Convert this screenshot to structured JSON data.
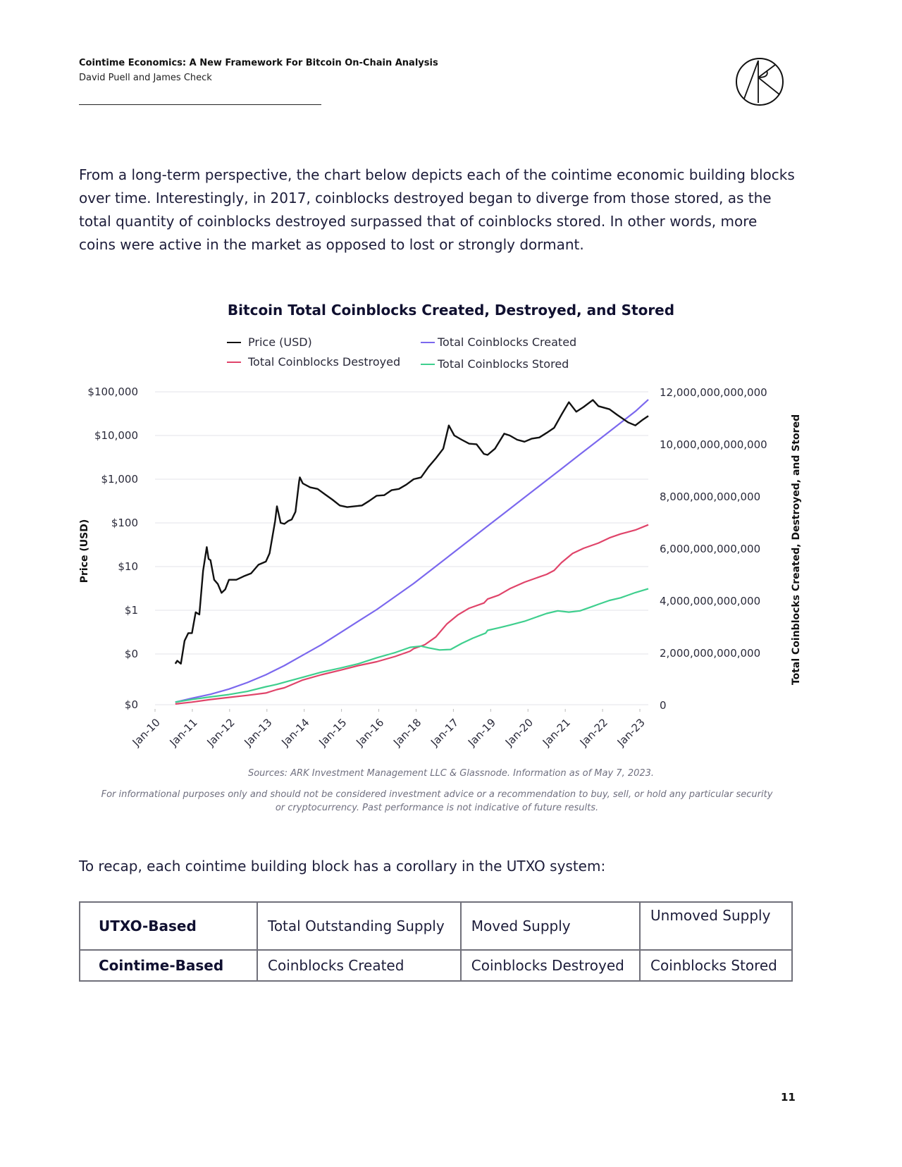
{
  "header": {
    "title": "Cointime Economics: A New Framework For Bitcoin On-Chain Analysis",
    "authors": "David Puell and James Check"
  },
  "intro_paragraph": "From a long-term perspective, the chart below depicts each of the cointime economic building blocks over time. Interestingly, in 2017, coinblocks destroyed began to diverge from those stored, as the total quantity of coinblocks destroyed surpassed that of coinblocks stored. In other words, more coins were active in the market as opposed to lost or strongly dormant.",
  "chart_data": {
    "type": "line",
    "title": "Bitcoin Total Coinblocks Created, Destroyed, and Stored",
    "xlabel": "",
    "ylabel_left": "Price (USD)",
    "ylabel_right": "Total Coinblocks Created, Destroyed, and Stored",
    "legend": [
      {
        "name": "Price (USD)",
        "color": "#111111"
      },
      {
        "name": "Total Coinblocks Created",
        "color": "#7b68ee"
      },
      {
        "name": "Total Coinblocks Destroyed",
        "color": "#e0446a"
      },
      {
        "name": "Total Coinblocks Stored",
        "color": "#3fcf8e"
      }
    ],
    "x_ticks": [
      "Jan-10",
      "Jan-11",
      "Jan-12",
      "Jan-13",
      "Jan-14",
      "Jan-15",
      "Jan-16",
      "Jan-18",
      "Jan-17",
      "Jan-19",
      "Jan-20",
      "Jan-21",
      "Jan-22",
      "Jan-23"
    ],
    "left_ticks": [
      "$100,000",
      "$10,000",
      "$1,000",
      "$100",
      "$10",
      "$1",
      "$0",
      "$0"
    ],
    "right_ticks": [
      "12,000,000,000,000",
      "10,000,000,000,000",
      "8,000,000,000,000",
      "6,000,000,000,000",
      "4,000,000,000,000",
      "2,000,000,000,000",
      "0"
    ],
    "x_range": [
      2010.0,
      2023.35
    ],
    "right_ylim": [
      0,
      12000000000000
    ],
    "left_scale": "log",
    "grid": true,
    "legend_placement": "top",
    "series": [
      {
        "name": "Price (USD)",
        "axis": "left",
        "color": "#111111",
        "x": [
          2010.55,
          2010.6,
          2010.7,
          2010.8,
          2010.9,
          2011.0,
          2011.1,
          2011.2,
          2011.3,
          2011.4,
          2011.45,
          2011.5,
          2011.6,
          2011.7,
          2011.8,
          2011.9,
          2012.0,
          2012.2,
          2012.4,
          2012.6,
          2012.8,
          2013.0,
          2013.1,
          2013.25,
          2013.3,
          2013.4,
          2013.5,
          2013.6,
          2013.7,
          2013.8,
          2013.9,
          2013.92,
          2014.0,
          2014.2,
          2014.4,
          2014.6,
          2014.8,
          2015.0,
          2015.2,
          2015.4,
          2015.6,
          2015.8,
          2016.0,
          2016.2,
          2016.4,
          2016.6,
          2016.8,
          2017.0,
          2017.2,
          2017.4,
          2017.6,
          2017.8,
          2017.95,
          2018.1,
          2018.3,
          2018.5,
          2018.7,
          2018.9,
          2019.0,
          2019.2,
          2019.45,
          2019.6,
          2019.8,
          2020.0,
          2020.2,
          2020.4,
          2020.6,
          2020.8,
          2021.0,
          2021.2,
          2021.4,
          2021.6,
          2021.85,
          2022.0,
          2022.3,
          2022.5,
          2022.8,
          2023.0,
          2023.2,
          2023.35
        ],
        "y": [
          0.06,
          0.07,
          0.06,
          0.2,
          0.3,
          0.3,
          0.9,
          0.8,
          8,
          28,
          15,
          14,
          5,
          4,
          2.5,
          3,
          5,
          5,
          6,
          7,
          11,
          13,
          20,
          110,
          240,
          100,
          95,
          110,
          120,
          180,
          900,
          1100,
          800,
          650,
          600,
          450,
          340,
          250,
          230,
          240,
          250,
          320,
          420,
          430,
          560,
          600,
          750,
          1000,
          1100,
          1900,
          3000,
          5000,
          17000,
          10000,
          8000,
          6500,
          6300,
          3800,
          3600,
          5000,
          11000,
          10000,
          8000,
          7200,
          8500,
          9000,
          11500,
          15000,
          30000,
          58000,
          35000,
          45000,
          65000,
          47000,
          40000,
          30000,
          20000,
          17000,
          23000,
          28000
        ]
      },
      {
        "name": "Total Coinblocks Created",
        "axis": "right",
        "color": "#7b68ee",
        "x": [
          2010.55,
          2011.0,
          2011.5,
          2012.0,
          2012.5,
          2013.0,
          2013.5,
          2014.0,
          2014.5,
          2015.0,
          2015.5,
          2016.0,
          2016.5,
          2017.0,
          2017.5,
          2018.0,
          2018.5,
          2019.0,
          2019.5,
          2020.0,
          2020.5,
          2021.0,
          2021.5,
          2022.0,
          2022.5,
          2023.0,
          2023.35
        ],
        "y": [
          100000000000,
          250000000000,
          400000000000,
          600000000000,
          850000000000,
          1150000000000,
          1500000000000,
          1900000000000,
          2300000000000,
          2750000000000,
          3200000000000,
          3650000000000,
          4150000000000,
          4650000000000,
          5200000000000,
          5750000000000,
          6300000000000,
          6850000000000,
          7400000000000,
          7950000000000,
          8500000000000,
          9050000000000,
          9600000000000,
          10150000000000,
          10700000000000,
          11250000000000,
          11700000000000
        ]
      },
      {
        "name": "Total Coinblocks Destroyed",
        "axis": "right",
        "color": "#e0446a",
        "x": [
          2010.55,
          2011.0,
          2011.5,
          2012.0,
          2012.5,
          2013.0,
          2013.3,
          2013.5,
          2014.0,
          2014.5,
          2015.0,
          2015.5,
          2016.0,
          2016.5,
          2016.9,
          2017.0,
          2017.3,
          2017.6,
          2017.9,
          2018.2,
          2018.5,
          2018.9,
          2019.0,
          2019.3,
          2019.6,
          2020.0,
          2020.3,
          2020.6,
          2020.8,
          2021.0,
          2021.3,
          2021.6,
          2022.0,
          2022.3,
          2022.6,
          2023.0,
          2023.35
        ],
        "y": [
          30000000000,
          100000000000,
          200000000000,
          280000000000,
          360000000000,
          450000000000,
          580000000000,
          650000000000,
          950000000000,
          1150000000000,
          1320000000000,
          1500000000000,
          1650000000000,
          1850000000000,
          2050000000000,
          2150000000000,
          2300000000000,
          2600000000000,
          3100000000000,
          3450000000000,
          3700000000000,
          3900000000000,
          4050000000000,
          4200000000000,
          4450000000000,
          4700000000000,
          4850000000000,
          5000000000000,
          5150000000000,
          5450000000000,
          5800000000000,
          6000000000000,
          6200000000000,
          6400000000000,
          6550000000000,
          6700000000000,
          6900000000000
        ]
      },
      {
        "name": "Total Coinblocks Stored",
        "axis": "right",
        "color": "#3fcf8e",
        "x": [
          2010.55,
          2011.0,
          2011.5,
          2012.0,
          2012.5,
          2013.0,
          2013.3,
          2013.6,
          2014.0,
          2014.5,
          2015.0,
          2015.5,
          2016.0,
          2016.5,
          2016.9,
          2017.2,
          2017.4,
          2017.7,
          2018.0,
          2018.3,
          2018.6,
          2018.95,
          2019.0,
          2019.3,
          2019.6,
          2020.0,
          2020.3,
          2020.6,
          2020.9,
          2021.2,
          2021.5,
          2021.8,
          2022.0,
          2022.3,
          2022.6,
          2023.0,
          2023.35
        ],
        "y": [
          100000000000,
          200000000000,
          300000000000,
          390000000000,
          510000000000,
          690000000000,
          780000000000,
          900000000000,
          1050000000000,
          1250000000000,
          1400000000000,
          1570000000000,
          1800000000000,
          2000000000000,
          2200000000000,
          2250000000000,
          2180000000000,
          2100000000000,
          2120000000000,
          2350000000000,
          2550000000000,
          2750000000000,
          2850000000000,
          2950000000000,
          3050000000000,
          3200000000000,
          3350000000000,
          3500000000000,
          3600000000000,
          3550000000000,
          3600000000000,
          3750000000000,
          3850000000000,
          4000000000000,
          4100000000000,
          4300000000000,
          4450000000000
        ]
      }
    ]
  },
  "sources_note": "Sources: ARK Investment Management LLC & Glassnode. Information as of May 7, 2023.",
  "disclaimer": "For informational purposes only and should not be considered investment advice or a recommendation to buy, sell, or hold any particular security or cryptocurrency. Past performance is not indicative of future results.",
  "recap_sentence": "To recap, each cointime building block has a corollary in the UTXO system:",
  "mapping_table": {
    "rows": [
      {
        "header": "UTXO-Based",
        "cells": [
          "Total Outstanding Supply",
          "Moved Supply",
          "Unmoved Supply"
        ]
      },
      {
        "header": "Cointime-Based",
        "cells": [
          "Coinblocks Created",
          "Coinblocks Destroyed",
          "Coinblocks Stored"
        ]
      }
    ]
  },
  "page_number": "11",
  "logo": {
    "name": "ark-logo",
    "text": "ARK"
  }
}
